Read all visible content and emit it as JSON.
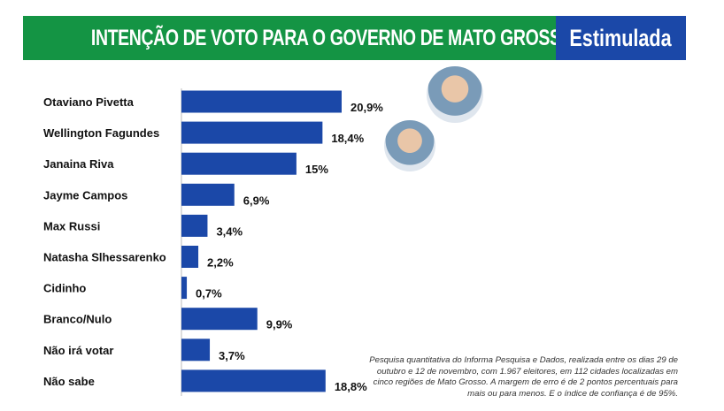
{
  "header": {
    "title": "INTENÇÃO DE VOTO PARA O GOVERNO DE MATO GROSSO",
    "tag": "Estimulada"
  },
  "colors": {
    "green": "#149444",
    "blue": "#1b48a8",
    "bar": "#1b48a8"
  },
  "chart_data": {
    "type": "bar",
    "orientation": "horizontal",
    "title": "INTENÇÃO DE VOTO PARA O GOVERNO DE MATO GROSSO",
    "categories": [
      "Otaviano Pivetta",
      "Wellington Fagundes",
      "Janaina Riva",
      "Jayme Campos",
      "Max Russi",
      "Natasha Slhessarenko",
      "Cidinho",
      "Branco/Nulo",
      "Não irá votar",
      "Não sabe"
    ],
    "values": [
      20.9,
      18.4,
      15,
      6.9,
      3.4,
      2.2,
      0.7,
      9.9,
      3.7,
      18.8
    ],
    "value_labels": [
      "20,9%",
      "18,4%",
      "15%",
      "6,9%",
      "3,4%",
      "2,2%",
      "0,7%",
      "9,9%",
      "3,7%",
      "18,8%"
    ],
    "xlim": [
      0,
      25
    ]
  },
  "note": "Pesquisa quantitativa do Informa Pesquisa e Dados, realizada entre os dias 29 de outubro e 12 de novembro, com 1.967 eleitores, em 112 cidades localizadas em cinco regiões de Mato Grosso. A margem de erro é de 2 pontos percentuais para mais ou para menos. E o índice de confiança é de 95%."
}
